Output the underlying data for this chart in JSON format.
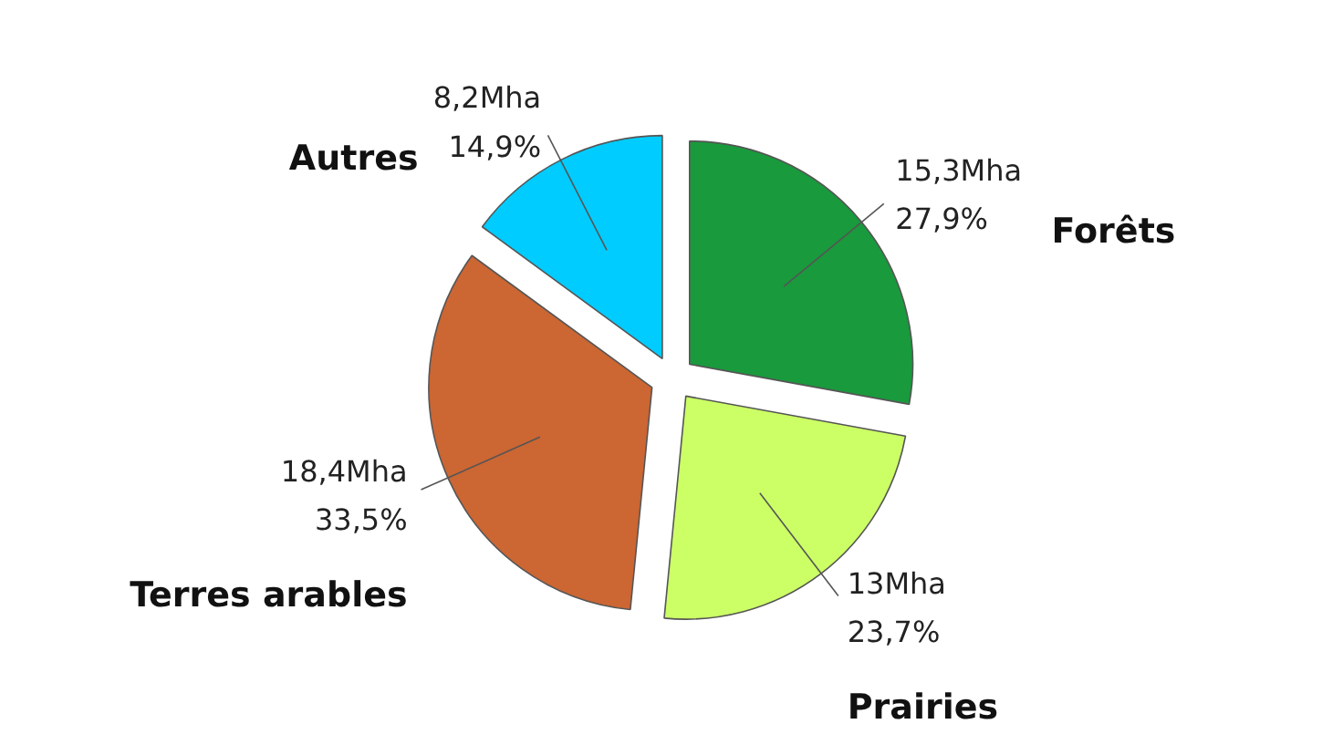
{
  "chart_data": {
    "type": "pie",
    "categories": [
      "Forêts",
      "Prairies",
      "Terres arables",
      "Autres"
    ],
    "values": [
      15.3,
      13,
      18.4,
      8.2
    ],
    "value_labels": [
      "15,3Mha\n27,9%",
      "13Mha\n23,7%",
      "18,4Mha\n33,5%",
      "8,2Mha\n14,9%"
    ],
    "colors": [
      "#199a3c",
      "#ccff66",
      "#cc6633",
      "#00ccff"
    ]
  }
}
